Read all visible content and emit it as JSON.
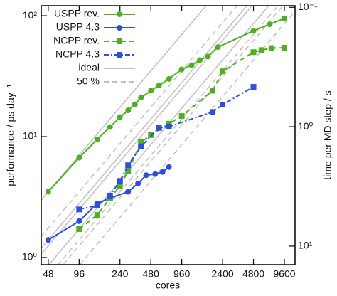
{
  "chart_data": {
    "type": "line",
    "x_label": "cores",
    "y_label": "performance / ps day⁻¹",
    "y2_label": "time per MD step / s",
    "log_x": true,
    "log_y": true,
    "legend": "upper left",
    "xlim": [
      41,
      12200
    ],
    "ylim": [
      0.873,
      121
    ],
    "y2lim": [
      14.3,
      0.097
    ],
    "xticks": [
      48,
      96,
      240,
      480,
      960,
      2400,
      4800,
      9600
    ],
    "yticks": [
      {
        "value": 1,
        "label": "10⁰"
      },
      {
        "value": 10,
        "label": "10¹"
      },
      {
        "value": 100,
        "label": "10²"
      }
    ],
    "y2ticks": [
      {
        "value": 10,
        "label": "10¹"
      },
      {
        "value": 1,
        "label": "10⁰"
      },
      {
        "value": 0.1,
        "label": "10⁻¹"
      }
    ],
    "series": [
      {
        "name": "USPP rev.",
        "color": "#4fae23",
        "marker": "circle",
        "line_style": "solid",
        "x": [
          48,
          96,
          144,
          192,
          240,
          288,
          336,
          384,
          480,
          576,
          720,
          960,
          1200,
          1440,
          1728,
          2160,
          4800,
          6912,
          9600
        ],
        "values": [
          3.5,
          6.7,
          9.5,
          12,
          14.5,
          16.5,
          18.5,
          21,
          24,
          26.5,
          30,
          36,
          39,
          43,
          46,
          55,
          75,
          85,
          95
        ]
      },
      {
        "name": "USPP 4.3",
        "color": "#2f4fd8",
        "marker": "circle",
        "line_style": "solid",
        "x": [
          48,
          96,
          144,
          192,
          288,
          360,
          432,
          528,
          624,
          720
        ],
        "values": [
          1.4,
          2.0,
          2.8,
          3.1,
          3.5,
          4.1,
          4.8,
          4.9,
          5.1,
          5.6
        ]
      },
      {
        "name": "NCPP rev.",
        "color": "#4fae23",
        "marker": "square",
        "line_style": "dashed",
        "x": [
          96,
          144,
          192,
          240,
          288,
          384,
          480,
          720,
          960,
          1920,
          2400,
          4800,
          5760,
          7200,
          9600
        ],
        "values": [
          1.72,
          2.25,
          3.1,
          3.9,
          5.2,
          9.0,
          10.3,
          12.8,
          14.8,
          24,
          34.7,
          50,
          52,
          54,
          54.4
        ]
      },
      {
        "name": "NCPP 4.3",
        "color": "#2f4fd8",
        "marker": "square",
        "line_style": "dashdot",
        "x": [
          96,
          144,
          192,
          240,
          288,
          384,
          576,
          720,
          1920,
          2400,
          4800
        ],
        "values": [
          2.5,
          2.7,
          3.25,
          4.3,
          5.8,
          8.3,
          11.8,
          12.1,
          16,
          18.4,
          25.8
        ]
      }
    ],
    "reference_lines": [
      {
        "name": "ideal",
        "color": "#c0c0c0",
        "line_style": "solid",
        "efficiency": 1,
        "anchors": [
          [
            48,
            3.5
          ],
          [
            48,
            1.4
          ],
          [
            96,
            1.72
          ],
          [
            96,
            2.5
          ]
        ]
      },
      {
        "name": "50 %",
        "color": "#c0c0c0",
        "line_style": "dashed",
        "efficiency": 0.5,
        "anchors": [
          [
            48,
            3.5
          ],
          [
            48,
            1.4
          ],
          [
            96,
            1.72
          ],
          [
            96,
            2.5
          ]
        ]
      }
    ]
  }
}
